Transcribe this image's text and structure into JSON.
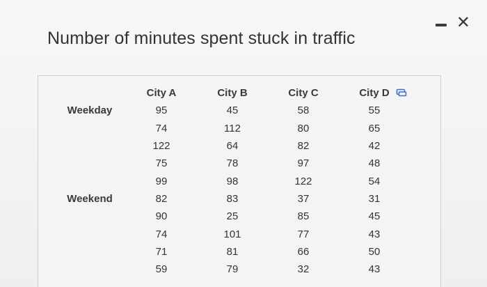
{
  "window": {
    "minimize_icon": "minimize-icon",
    "close_icon": "close-icon",
    "close_glyph": "✕"
  },
  "title": "Number of minutes spent stuck in traffic",
  "table": {
    "columns": [
      "City A",
      "City B",
      "City C",
      "City D"
    ],
    "rows": [
      {
        "label": "Weekday",
        "values": [
          "95",
          "45",
          "58",
          "55"
        ]
      },
      {
        "label": "",
        "values": [
          "74",
          "112",
          "80",
          "65"
        ]
      },
      {
        "label": "",
        "values": [
          "122",
          "64",
          "82",
          "42"
        ]
      },
      {
        "label": "",
        "values": [
          "75",
          "78",
          "97",
          "48"
        ]
      },
      {
        "label": "",
        "values": [
          "99",
          "98",
          "122",
          "54"
        ]
      },
      {
        "label": "Weekend",
        "values": [
          "82",
          "83",
          "37",
          "31"
        ]
      },
      {
        "label": "",
        "values": [
          "90",
          "25",
          "85",
          "45"
        ]
      },
      {
        "label": "",
        "values": [
          "74",
          "101",
          "77",
          "43"
        ]
      },
      {
        "label": "",
        "values": [
          "71",
          "81",
          "66",
          "50"
        ]
      },
      {
        "label": "",
        "values": [
          "59",
          "79",
          "32",
          "43"
        ]
      }
    ],
    "copy_icon": "copy-icon",
    "accent_color": "#3b6fd4"
  }
}
